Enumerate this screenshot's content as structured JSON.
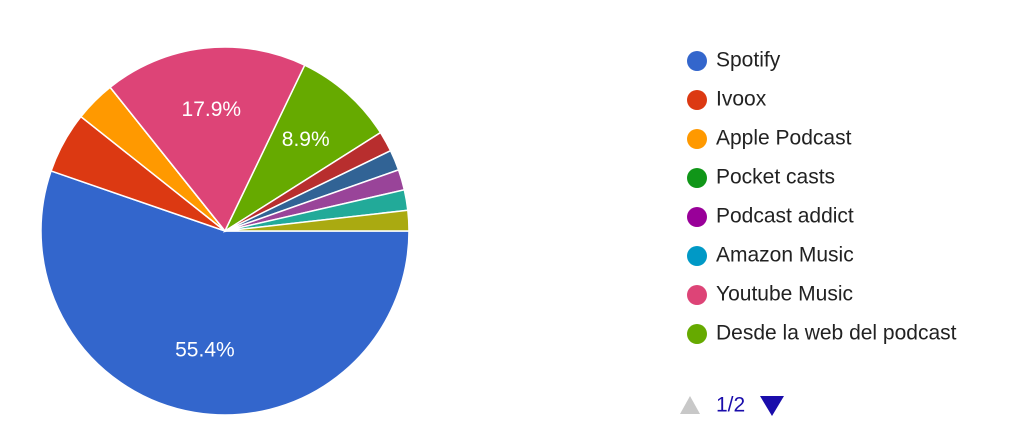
{
  "chart_data": {
    "type": "pie",
    "categories": [
      "Spotify",
      "Ivoox",
      "Apple Podcast",
      "Pocket casts",
      "Podcast addict",
      "Amazon Music",
      "Youtube Music",
      "Desde la web del podcast",
      null,
      null,
      null,
      null,
      null
    ],
    "values": [
      55.4,
      5.4,
      3.6,
      0,
      0,
      0,
      17.9,
      8.9,
      1.8,
      1.8,
      1.8,
      1.8,
      1.8
    ],
    "value_labels": [
      "55.4%",
      null,
      null,
      null,
      null,
      null,
      "17.9%",
      "8.9%",
      null,
      null,
      null,
      null,
      null
    ],
    "colors": [
      "#3366cc",
      "#dc3912",
      "#ff9900",
      "#109618",
      "#990099",
      "#0099c6",
      "#dd4477",
      "#66aa00",
      "#b82e2e",
      "#316395",
      "#994499",
      "#22aa99",
      "#aaaa11"
    ],
    "page_indicator": "1/2"
  }
}
